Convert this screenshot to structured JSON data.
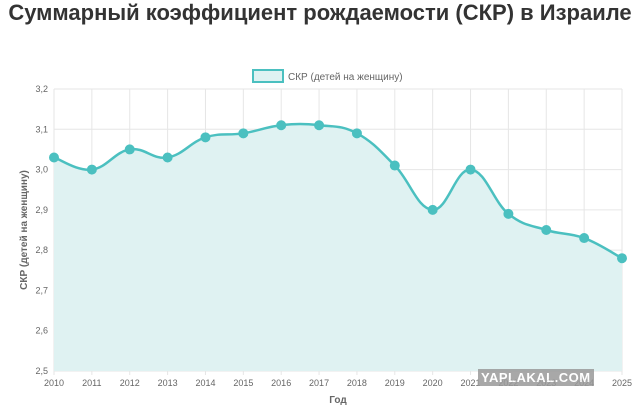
{
  "chart_data": {
    "type": "area",
    "title": "Суммарный коэффициент рождаемости (СКР) в Израиле",
    "xlabel": "Год",
    "ylabel": "СКР (детей на женщину)",
    "legend": {
      "position": "top",
      "label": "СКР (детей на женщину)"
    },
    "grid": true,
    "ylim": [
      2.5,
      3.2
    ],
    "yticks": [
      "2,5",
      "2,6",
      "2,7",
      "2,8",
      "2,9",
      "3,0",
      "3,1",
      "3,2"
    ],
    "x": [
      "2010",
      "2011",
      "2012",
      "2013",
      "2014",
      "2015",
      "2016",
      "2017",
      "2018",
      "2019",
      "2020",
      "2021",
      "2022",
      "2023",
      "2024",
      "2025"
    ],
    "series": [
      {
        "name": "СКР (детей на женщину)",
        "values": [
          3.03,
          3.0,
          3.05,
          3.03,
          3.08,
          3.09,
          3.11,
          3.11,
          3.09,
          3.01,
          2.9,
          3.0,
          2.89,
          2.85,
          2.83,
          2.78
        ]
      }
    ],
    "colors": {
      "line": "#4bc0c0",
      "fill": "#dff2f2",
      "grid": "#e6e6e6",
      "text": "#666666"
    }
  },
  "watermark": "YAPLAKAL.COM"
}
